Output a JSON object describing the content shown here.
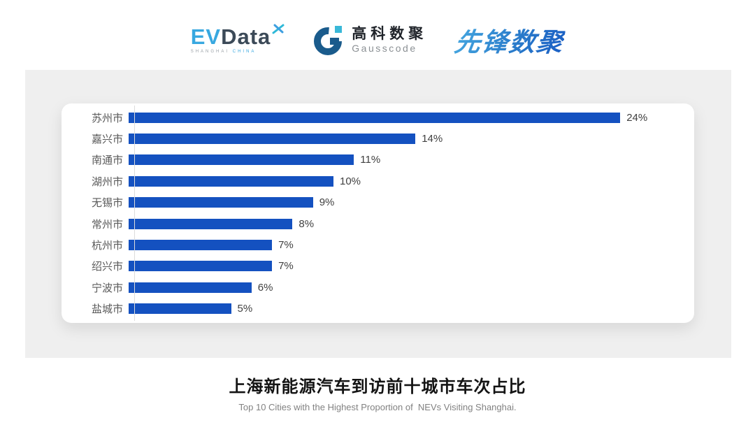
{
  "header": {
    "evdata": {
      "ev": "EV",
      "data": "Data",
      "tagline_left": "SHANGHAI",
      "tagline_right": "CHINA",
      "ev_color": "#38A8E0",
      "data_color": "#3C4A58"
    },
    "gausscode": {
      "cn": "高科数聚",
      "en": "Gausscode",
      "icon_color": "#1A5B8C",
      "icon_accent": "#39B8D8"
    },
    "pioneer": {
      "text": "先锋数聚",
      "color": "#2A7CCB"
    }
  },
  "chart_data": {
    "type": "bar",
    "orientation": "horizontal",
    "title": "上海新能源汽车到访前十城市车次占比",
    "subtitle": "Top 10 Cities with the Highest Proportion of  NEVs Visiting Shanghai.",
    "categories": [
      "苏州市",
      "嘉兴市",
      "南通市",
      "湖州市",
      "无锡市",
      "常州市",
      "杭州市",
      "绍兴市",
      "宁波市",
      "盐城市"
    ],
    "values": [
      24,
      14,
      11,
      10,
      9,
      8,
      7,
      7,
      6,
      5
    ],
    "value_labels": [
      "24%",
      "14%",
      "11%",
      "10%",
      "9%",
      "8%",
      "7%",
      "7%",
      "6%",
      "5%"
    ],
    "unit": "%",
    "xlim": [
      0,
      24
    ],
    "bar_color": "#1451C0",
    "axis_line_color": "#DCDCDC",
    "category_label_color": "#595959",
    "value_label_color": "#404040",
    "grid": false,
    "legend": false
  },
  "footer": {
    "title": "上海新能源汽车到访前十城市车次占比",
    "subtitle": "Top 10 Cities with the Highest Proportion of  NEVs Visiting Shanghai."
  }
}
